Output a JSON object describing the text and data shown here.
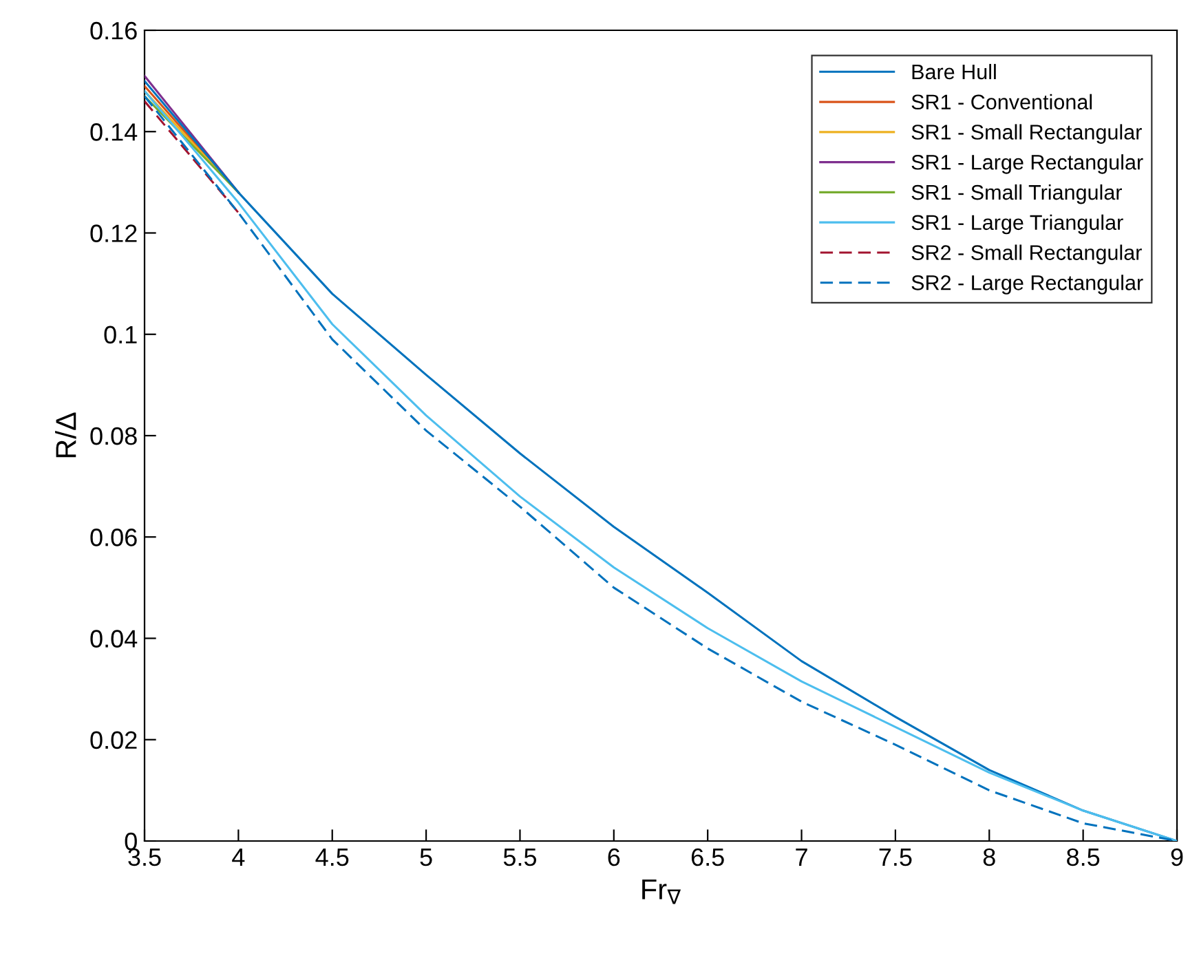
{
  "chart_data": {
    "type": "line",
    "xlabel": "Fr$_{∇}$",
    "ylabel": "R/Δ",
    "x": [
      3.5,
      4,
      4.5,
      5,
      5.5,
      6,
      6.5,
      7,
      7.5,
      8,
      8.5,
      9
    ],
    "series": [
      {
        "name": "Bare Hull",
        "color": "#0072bd",
        "line_style": "solid",
        "values": [
          0.15,
          0.128,
          0.108,
          0.092,
          0.0765,
          0.062,
          0.049,
          0.0355,
          0.0245,
          0.014,
          0.006,
          0
        ]
      },
      {
        "name": "SR1 - Conventional",
        "color": "#d95319",
        "line_style": "solid",
        "values": [
          0.149,
          0.128,
          null,
          null,
          null,
          null,
          null,
          null,
          null,
          null,
          null,
          null
        ]
      },
      {
        "name": "SR1 - Small Rectangular",
        "color": "#edb120",
        "line_style": "solid",
        "values": [
          0.148,
          0.128,
          null,
          null,
          null,
          null,
          null,
          null,
          null,
          null,
          null,
          null
        ]
      },
      {
        "name": "SR1 - Large Rectangular",
        "color": "#7e2f8e",
        "line_style": "solid",
        "values": [
          0.151,
          0.128,
          null,
          null,
          null,
          null,
          null,
          null,
          null,
          null,
          null,
          null
        ]
      },
      {
        "name": "SR1 - Small Triangular",
        "color": "#77ac30",
        "line_style": "solid",
        "values": [
          0.147,
          0.128,
          null,
          null,
          null,
          null,
          null,
          null,
          null,
          null,
          null,
          null
        ]
      },
      {
        "name": "SR1 - Large Triangular",
        "color": "#4dbeee",
        "line_style": "solid",
        "values": [
          0.148,
          0.126,
          0.102,
          0.084,
          0.068,
          0.054,
          0.042,
          0.0315,
          0.0225,
          0.0135,
          0.006,
          0
        ]
      },
      {
        "name": "SR2 - Small Rectangular",
        "color": "#a2142f",
        "line_style": "dashed",
        "values": [
          0.146,
          0.124,
          null,
          null,
          null,
          null,
          null,
          null,
          null,
          null,
          null,
          null
        ]
      },
      {
        "name": "SR2 - Large Rectangular",
        "color": "#0072bd",
        "line_style": "dashed",
        "values": [
          0.147,
          0.124,
          0.099,
          0.081,
          0.066,
          0.05,
          0.038,
          0.0275,
          0.019,
          0.01,
          0.0035,
          0
        ]
      }
    ],
    "xlim": [
      3.5,
      9
    ],
    "ylim": [
      0,
      0.16
    ],
    "xticks": [
      3.5,
      4,
      4.5,
      5,
      5.5,
      6,
      6.5,
      7,
      7.5,
      8,
      8.5,
      9
    ],
    "yticks": [
      0,
      0.02,
      0.04,
      0.06,
      0.08,
      0.1,
      0.12,
      0.14,
      0.16
    ],
    "grid": false,
    "legend": "top right",
    "marker": "none"
  }
}
